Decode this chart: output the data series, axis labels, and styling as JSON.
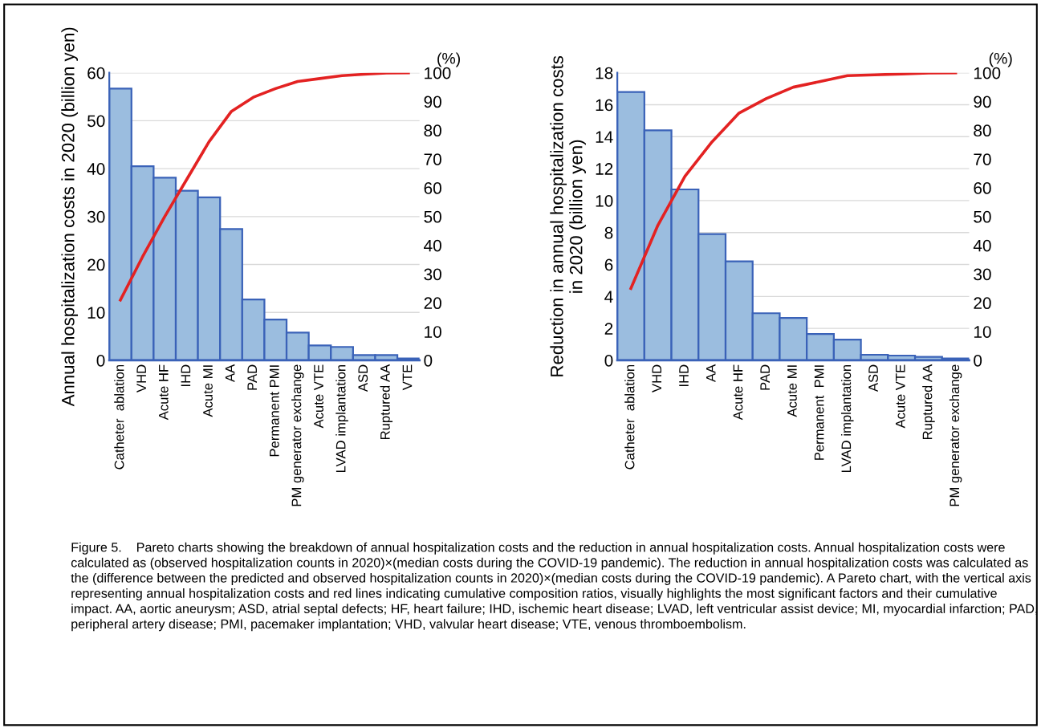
{
  "chart_data": [
    {
      "type": "bar",
      "categories": [
        "Catheter  ablation",
        "VHD",
        "Acute HF",
        "IHD",
        "Acute MI",
        "AA",
        "PAD",
        "Permanent PMI",
        "PM generator exchange",
        "Acute VTE",
        "LVAD implantation",
        "ASD",
        "Ruptured AA",
        "VTE"
      ],
      "series": [
        {
          "color": "#9bbddf",
          "values": [
            56.7,
            40.5,
            38.1,
            35.4,
            34.0,
            27.4,
            12.7,
            8.5,
            5.8,
            3.1,
            2.8,
            1.1,
            1.1,
            0.4
          ]
        },
        {
          "type": "line",
          "axis": "y2",
          "color": "#e32222",
          "values": [
            21,
            36,
            50,
            63,
            76,
            86.5,
            91.5,
            94.5,
            97,
            98,
            99,
            99.5,
            99.9,
            100
          ]
        }
      ],
      "ylabel": "Annual hospitalization costs in 2020 (billion yen)",
      "y2label": "(%)",
      "ylim": [
        0,
        60
      ],
      "yticks": [
        0,
        10,
        20,
        30,
        40,
        50,
        60
      ],
      "y2lim": [
        0,
        100
      ],
      "y2ticks": [
        0,
        10,
        20,
        30,
        40,
        50,
        60,
        70,
        80,
        90,
        100
      ],
      "grid": "y",
      "annotations": [
        "Figure 5.    Pareto charts showing the breakdown of annual hospitalization costs and the reduction in annual hospitalization costs. Annual hospitalization costs were calculated as (observed hospitalization counts in 2020)×(median costs during the COVID-19 pandemic). The reduction in annual hospitalization costs was calculated as the (difference between the predicted and observed hospitalization counts in 2020)×(median costs during the COVID-19 pandemic). A Pareto chart, with the vertical axis representing annual hospitalization costs and red lines indicating cumulative composition ratios, visually highlights the most significant factors and their cumulative impact. AA, aortic aneurysm; ASD, atrial septal defects; HF, heart failure; IHD, ischemic heart disease; LVAD, left ventricular assist device; MI, myocardial infarction; PAD, peripheral artery disease; PMI, pacemaker implantation; VHD, valvular heart disease; VTE, venous thromboembolism."
      ]
    },
    {
      "type": "bar",
      "categories": [
        "Catheter  ablation",
        "VHD",
        "IHD",
        "AA",
        "Acute HF",
        "PAD",
        "Acute MI",
        "Permanent  PMI",
        "LVAD implantation",
        "ASD",
        "Acute VTE",
        "Ruptured AA",
        "PM generator exchange"
      ],
      "series": [
        {
          "color": "#9bbddf",
          "values": [
            16.8,
            14.4,
            10.7,
            7.9,
            6.2,
            2.95,
            2.65,
            1.65,
            1.3,
            0.35,
            0.3,
            0.22,
            0.12
          ]
        },
        {
          "type": "line",
          "axis": "y2",
          "color": "#e32222",
          "values": [
            25,
            47,
            64,
            76,
            86,
            91,
            95,
            97,
            99,
            99.3,
            99.6,
            99.9,
            100
          ]
        }
      ],
      "ylabel": "Reduction in annual hospitalization costs\nin 2020 (billion yen)",
      "y2label": "(%)",
      "ylim": [
        0,
        18
      ],
      "yticks": [
        0,
        2,
        4,
        6,
        8,
        10,
        12,
        14,
        16,
        18
      ],
      "y2lim": [
        0,
        100
      ],
      "y2ticks": [
        0,
        10,
        20,
        30,
        40,
        50,
        60,
        70,
        80,
        90,
        100
      ],
      "grid": "y"
    }
  ]
}
